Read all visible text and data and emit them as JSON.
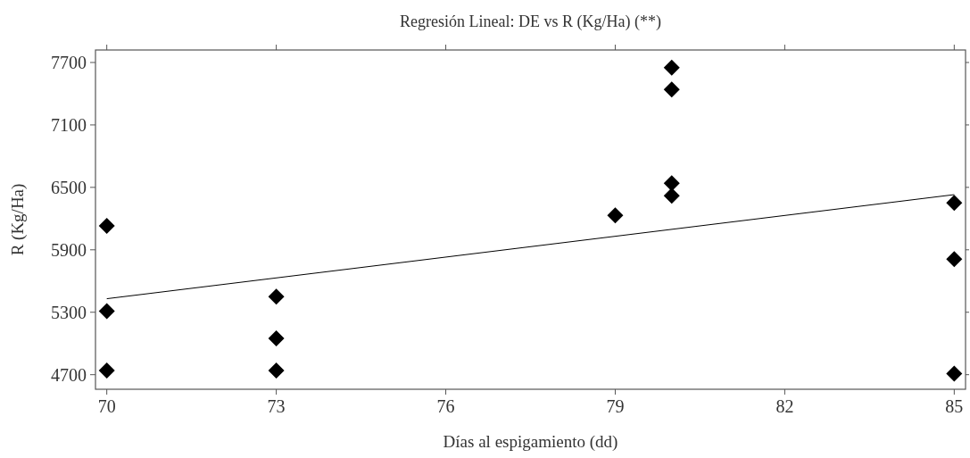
{
  "chart_data": {
    "type": "scatter",
    "title": "Regresión Lineal: DE vs R (Kg/Ha) (**)",
    "xlabel": "Días al espigamiento (dd)",
    "ylabel": "R (Kg/Ha)",
    "xlim": [
      69.8,
      85.2
    ],
    "xticks": [
      70,
      73,
      76,
      79,
      82,
      85
    ],
    "ylim": [
      4560,
      7820
    ],
    "yticks": [
      4700,
      5300,
      5900,
      6500,
      7100,
      7700
    ],
    "grid": false,
    "series": [
      {
        "color": "#000000",
        "marker": "diamond",
        "x": [
          70,
          70,
          70,
          73,
          73,
          73,
          79,
          80,
          80,
          80,
          80,
          85,
          85,
          85
        ],
        "values": [
          6130,
          5310,
          4740,
          5450,
          5050,
          4740,
          6230,
          7650,
          7440,
          6540,
          6420,
          6350,
          5810,
          4710
        ]
      },
      {
        "type": "line",
        "color": "#000000",
        "marker": "none",
        "line_style": "solid",
        "x": [
          70,
          85
        ],
        "values": [
          5430,
          6430
        ]
      }
    ]
  }
}
